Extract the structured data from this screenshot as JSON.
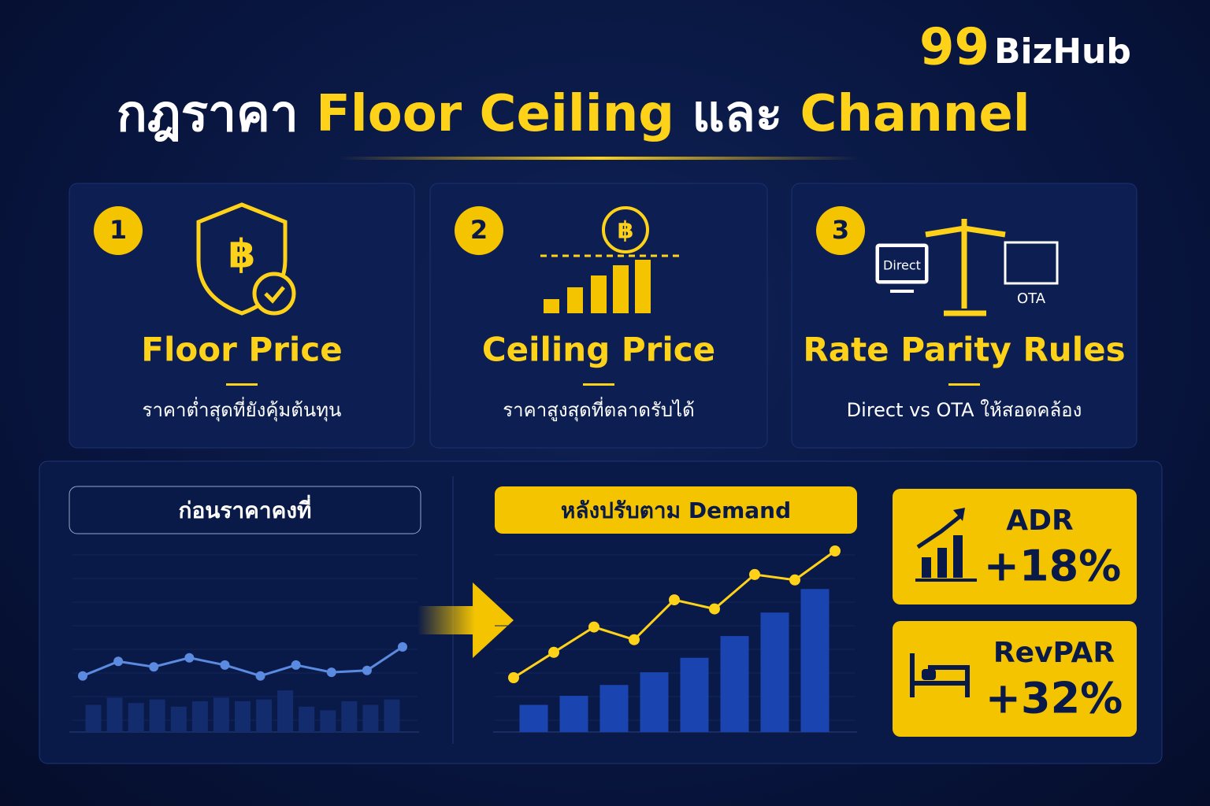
{
  "brand": {
    "number": "99",
    "name": "BizHub"
  },
  "title": {
    "part1": "กฎราคา",
    "part2": "Floor Ceiling",
    "part3": "และ",
    "part4": "Channel"
  },
  "icons": {
    "currency": "฿",
    "direct": "Direct",
    "ota": "OTA"
  },
  "cards": [
    {
      "number": "1",
      "title": "Floor Price",
      "subtitle": "ราคาต่ำสุดที่ยังคุ้มต้นทุน"
    },
    {
      "number": "2",
      "title": "Ceiling Price",
      "subtitle": "ราคาสูงสุดที่ตลาดรับได้"
    },
    {
      "number": "3",
      "title": "Rate Parity Rules",
      "subtitle": "Direct vs OTA ให้สอดคล้อง"
    }
  ],
  "before": {
    "label": "ก่อนราคาคงที่",
    "line": [
      31,
      39,
      36,
      41,
      37,
      31,
      37,
      33,
      34,
      47
    ],
    "bars": [
      15,
      19,
      16,
      18,
      14,
      17,
      19,
      17,
      18,
      23,
      14,
      12,
      17,
      15,
      18
    ]
  },
  "after": {
    "label": "หลังปรับตาม Demand",
    "line": [
      30,
      44,
      58,
      51,
      73,
      68,
      87,
      84,
      100
    ],
    "bars": [
      15,
      20,
      26,
      33,
      41,
      53,
      66,
      79
    ]
  },
  "kpis": [
    {
      "name": "ADR",
      "value": "+18%"
    },
    {
      "name": "RevPAR",
      "value": "+32%"
    }
  ]
}
